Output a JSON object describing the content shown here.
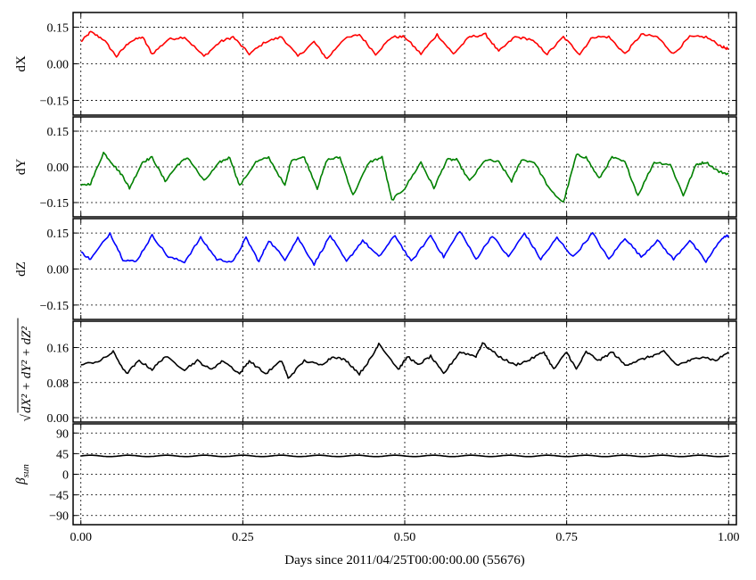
{
  "chart_data": [
    {
      "type": "line",
      "ylabel": "dX",
      "ylim": [
        -0.21,
        0.21
      ],
      "yticks": [
        "0.15",
        "0.00",
        "−0.15"
      ],
      "ytick_values": [
        0.15,
        0.0,
        -0.15
      ],
      "color": "#ff0000",
      "series": [
        {
          "x": [
            0.0,
            0.015,
            0.035,
            0.055,
            0.075,
            0.095,
            0.11,
            0.135,
            0.16,
            0.19,
            0.215,
            0.235,
            0.26,
            0.285,
            0.31,
            0.335,
            0.36,
            0.38,
            0.405,
            0.43,
            0.455,
            0.48,
            0.5,
            0.525,
            0.55,
            0.575,
            0.6,
            0.625,
            0.645,
            0.67,
            0.695,
            0.72,
            0.745,
            0.77,
            0.79,
            0.815,
            0.84,
            0.865,
            0.89,
            0.915,
            0.94,
            0.965,
            0.99,
            1.0
          ],
          "values": [
            0.09,
            0.13,
            0.1,
            0.03,
            0.09,
            0.11,
            0.04,
            0.1,
            0.11,
            0.03,
            0.09,
            0.11,
            0.04,
            0.09,
            0.11,
            0.03,
            0.09,
            0.02,
            0.1,
            0.12,
            0.04,
            0.11,
            0.11,
            0.04,
            0.12,
            0.04,
            0.11,
            0.12,
            0.05,
            0.11,
            0.1,
            0.04,
            0.11,
            0.04,
            0.11,
            0.11,
            0.04,
            0.12,
            0.11,
            0.04,
            0.11,
            0.11,
            0.07,
            0.06
          ]
        }
      ]
    },
    {
      "type": "line",
      "ylabel": "dY",
      "ylim": [
        -0.21,
        0.21
      ],
      "yticks": [
        "0.15",
        "0.00",
        "−0.15"
      ],
      "ytick_values": [
        0.15,
        0.0,
        -0.15
      ],
      "color": "#008000",
      "series": [
        {
          "x": [
            0.0,
            0.015,
            0.035,
            0.05,
            0.065,
            0.075,
            0.095,
            0.11,
            0.13,
            0.15,
            0.165,
            0.19,
            0.215,
            0.23,
            0.245,
            0.27,
            0.29,
            0.315,
            0.325,
            0.345,
            0.365,
            0.38,
            0.4,
            0.42,
            0.445,
            0.465,
            0.48,
            0.5,
            0.525,
            0.545,
            0.565,
            0.58,
            0.6,
            0.625,
            0.645,
            0.665,
            0.68,
            0.7,
            0.725,
            0.745,
            0.765,
            0.78,
            0.8,
            0.82,
            0.84,
            0.86,
            0.885,
            0.91,
            0.93,
            0.95,
            0.965,
            0.985,
            1.0
          ],
          "values": [
            -0.08,
            -0.07,
            0.06,
            0.01,
            -0.04,
            -0.09,
            0.02,
            0.04,
            -0.06,
            0.01,
            0.04,
            -0.06,
            0.02,
            0.04,
            -0.08,
            0.02,
            0.04,
            -0.08,
            0.03,
            0.04,
            -0.09,
            0.03,
            0.04,
            -0.12,
            0.02,
            0.04,
            -0.14,
            -0.09,
            0.02,
            -0.09,
            0.03,
            0.03,
            -0.06,
            0.03,
            0.02,
            -0.06,
            0.03,
            0.02,
            -0.1,
            -0.15,
            0.05,
            0.04,
            -0.05,
            0.04,
            0.02,
            -0.12,
            0.02,
            0.01,
            -0.12,
            0.01,
            0.02,
            -0.02,
            -0.03
          ]
        }
      ]
    },
    {
      "type": "line",
      "ylabel": "dZ",
      "ylim": [
        -0.21,
        0.21
      ],
      "yticks": [
        "0.15",
        "0.00",
        "−0.15"
      ],
      "ytick_values": [
        0.15,
        0.0,
        -0.15
      ],
      "color": "#0000ff",
      "series": [
        {
          "x": [
            0.0,
            0.015,
            0.045,
            0.065,
            0.085,
            0.11,
            0.135,
            0.16,
            0.185,
            0.21,
            0.235,
            0.255,
            0.275,
            0.29,
            0.315,
            0.335,
            0.36,
            0.385,
            0.41,
            0.435,
            0.46,
            0.485,
            0.51,
            0.54,
            0.56,
            0.585,
            0.61,
            0.635,
            0.66,
            0.685,
            0.71,
            0.735,
            0.76,
            0.79,
            0.815,
            0.84,
            0.865,
            0.89,
            0.915,
            0.94,
            0.965,
            0.99,
            1.0
          ],
          "values": [
            0.07,
            0.04,
            0.15,
            0.04,
            0.03,
            0.14,
            0.05,
            0.03,
            0.13,
            0.04,
            0.03,
            0.13,
            0.03,
            0.12,
            0.04,
            0.13,
            0.02,
            0.14,
            0.03,
            0.12,
            0.05,
            0.14,
            0.03,
            0.14,
            0.05,
            0.16,
            0.04,
            0.14,
            0.05,
            0.15,
            0.04,
            0.13,
            0.05,
            0.15,
            0.04,
            0.13,
            0.05,
            0.12,
            0.04,
            0.12,
            0.03,
            0.13,
            0.14
          ]
        }
      ]
    },
    {
      "type": "line",
      "ylabel": "√(dX² + dY² + dZ²)",
      "ylim": [
        -0.01,
        0.22
      ],
      "yticks": [
        "0.16",
        "0.08",
        "0.00"
      ],
      "ytick_values": [
        0.16,
        0.08,
        0.0
      ],
      "color": "#000000",
      "series": [
        {
          "x": [
            0.0,
            0.03,
            0.05,
            0.07,
            0.09,
            0.11,
            0.13,
            0.16,
            0.18,
            0.2,
            0.22,
            0.245,
            0.26,
            0.285,
            0.31,
            0.32,
            0.345,
            0.37,
            0.39,
            0.41,
            0.43,
            0.45,
            0.46,
            0.49,
            0.505,
            0.52,
            0.54,
            0.56,
            0.585,
            0.61,
            0.62,
            0.645,
            0.67,
            0.69,
            0.715,
            0.73,
            0.75,
            0.765,
            0.78,
            0.8,
            0.82,
            0.84,
            0.86,
            0.88,
            0.9,
            0.92,
            0.94,
            0.96,
            0.98,
            1.0
          ],
          "values": [
            0.12,
            0.13,
            0.15,
            0.1,
            0.13,
            0.11,
            0.14,
            0.11,
            0.13,
            0.11,
            0.13,
            0.1,
            0.13,
            0.1,
            0.13,
            0.09,
            0.13,
            0.12,
            0.14,
            0.13,
            0.1,
            0.14,
            0.17,
            0.11,
            0.14,
            0.12,
            0.14,
            0.1,
            0.15,
            0.14,
            0.17,
            0.14,
            0.12,
            0.13,
            0.15,
            0.11,
            0.15,
            0.11,
            0.15,
            0.13,
            0.15,
            0.12,
            0.13,
            0.14,
            0.15,
            0.12,
            0.13,
            0.14,
            0.13,
            0.15
          ]
        }
      ]
    },
    {
      "type": "line",
      "ylabel": "βsun",
      "ylim": [
        -110,
        110
      ],
      "yticks": [
        "90",
        "45",
        "0",
        "−45",
        "−90"
      ],
      "ytick_values": [
        90,
        45,
        0,
        -45,
        -90
      ],
      "color": "#000000",
      "series": [
        {
          "x": [
            0.0,
            1.0
          ],
          "values": [
            40,
            40
          ],
          "amplitude": 1.5,
          "cycles": 17
        }
      ]
    }
  ],
  "xaxis": {
    "xlim": [
      -0.012,
      1.012
    ],
    "xticks": [
      "0.00",
      "0.25",
      "0.50",
      "0.75",
      "1.00"
    ],
    "xtick_values": [
      0.0,
      0.25,
      0.5,
      0.75,
      1.0
    ],
    "xlabel": "Days since 2011/04/25T00:00:00.00 (55676)"
  }
}
